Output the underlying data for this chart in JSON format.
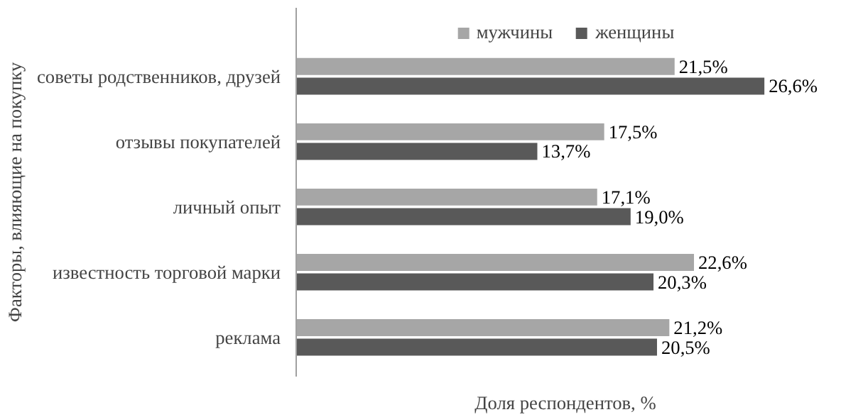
{
  "chart_data": {
    "type": "bar",
    "orientation": "horizontal",
    "ylabel": "Факторы, влияющие на покупку",
    "xlabel": "Доля респондентов, %",
    "categories": [
      "советы родственников, друзей",
      "отзывы покупателей",
      "личный опыт",
      "известность торговой марки",
      "реклама"
    ],
    "series": [
      {
        "name": "мужчины",
        "color": "#a6a6a6",
        "values": [
          21.5,
          17.5,
          17.1,
          22.6,
          21.2
        ],
        "value_labels": [
          "21,5%",
          "17,5%",
          "17,1%",
          "22,6%",
          "21,2%"
        ]
      },
      {
        "name": "женщины",
        "color": "#595959",
        "values": [
          26.6,
          13.7,
          19.0,
          20.3,
          20.5
        ],
        "value_labels": [
          "26,6%",
          "13,7%",
          "19,0%",
          "20,3%",
          "20,5%"
        ]
      }
    ],
    "legend": "top"
  }
}
